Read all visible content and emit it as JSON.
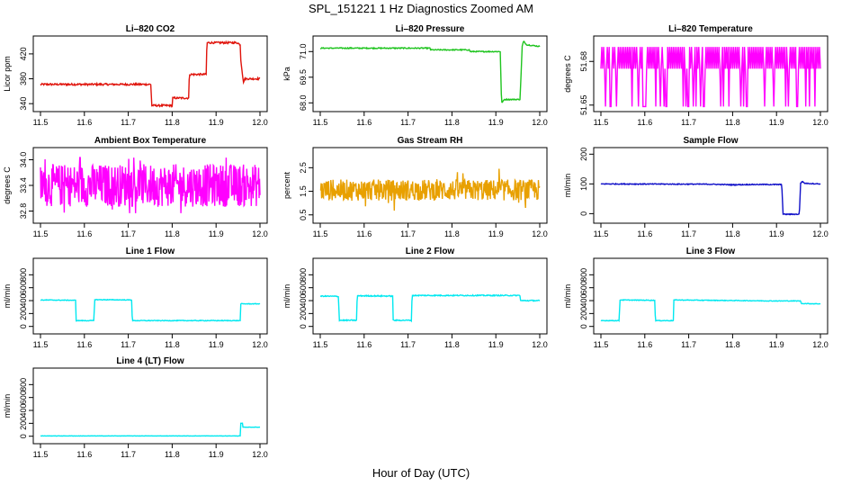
{
  "page": {
    "title": "SPL_151221  1 Hz Diagnostics Zoomed AM",
    "x_axis_label": "Hour of Day (UTC)"
  },
  "chart_data": [
    {
      "type": "line",
      "title": "Li–820 CO2",
      "ylabel": "Licor ppm",
      "color": "#e0140c",
      "xlim": [
        11.5,
        12.0
      ],
      "x_ticks": [
        "11.5",
        "11.6",
        "11.7",
        "11.8",
        "11.9",
        "12.0"
      ],
      "y_ticks": [
        {
          "value": 340,
          "label": "340"
        },
        {
          "value": 380,
          "label": "380"
        },
        {
          "value": 420,
          "label": "420"
        }
      ],
      "ylim": [
        333,
        443
      ],
      "noise": 1.5,
      "x": [
        11.5,
        11.752,
        11.753,
        11.8,
        11.801,
        11.838,
        11.839,
        11.878,
        11.879,
        11.948,
        11.955,
        11.956,
        11.963,
        11.964,
        12.0
      ],
      "values": [
        371,
        371,
        337,
        337,
        349,
        349,
        387,
        387,
        438,
        438,
        435,
        412,
        370,
        380,
        380
      ]
    },
    {
      "type": "line",
      "title": "Li–820 Pressure",
      "ylabel": "kPa",
      "color": "#1fc41f",
      "xlim": [
        11.5,
        12.0
      ],
      "x_ticks": [
        "11.5",
        "11.6",
        "11.7",
        "11.8",
        "11.9",
        "12.0"
      ],
      "y_ticks": [
        {
          "value": 68.0,
          "label": "68.0"
        },
        {
          "value": 69.5,
          "label": "69.5"
        },
        {
          "value": 71.0,
          "label": "71.0"
        }
      ],
      "ylim": [
        67.7,
        71.7
      ],
      "noise": 0.03,
      "x": [
        11.5,
        11.75,
        11.751,
        11.84,
        11.841,
        11.91,
        11.913,
        11.92,
        11.955,
        11.96,
        11.963,
        11.97,
        12.0
      ],
      "values": [
        71.2,
        71.2,
        71.1,
        71.1,
        71.0,
        71.0,
        68.0,
        68.2,
        68.2,
        71.3,
        71.6,
        71.4,
        71.3
      ]
    },
    {
      "type": "line",
      "title": "Li–820 Temperature",
      "ylabel": "degrees C",
      "color": "#ff00ff",
      "xlim": [
        11.5,
        12.0
      ],
      "x_ticks": [
        "11.5",
        "11.6",
        "11.7",
        "11.8",
        "11.9",
        "12.0"
      ],
      "y_ticks": [
        {
          "value": 51.65,
          "label": "51.65"
        },
        {
          "value": 51.68,
          "label": "51.68"
        }
      ],
      "ylim": [
        51.648,
        51.695
      ],
      "pattern": "quantized",
      "levels": [
        51.675,
        51.69
      ],
      "low_dip": 51.649,
      "dip_count": 40
    },
    {
      "type": "line",
      "title": "Ambient Box Temperature",
      "ylabel": "degrees C",
      "color": "#ff00ff",
      "xlim": [
        11.5,
        12.0
      ],
      "x_ticks": [
        "11.5",
        "11.6",
        "11.7",
        "11.8",
        "11.9",
        "12.0"
      ],
      "y_ticks": [
        {
          "value": 32.8,
          "label": "32.8"
        },
        {
          "value": 33.4,
          "label": "33.4"
        },
        {
          "value": 34.0,
          "label": "34.0"
        }
      ],
      "ylim": [
        32.6,
        34.2
      ],
      "pattern": "noise",
      "mean": 33.4,
      "spread": 0.5,
      "clip": [
        32.75,
        34.05
      ]
    },
    {
      "type": "line",
      "title": "Gas Stream RH",
      "ylabel": "percent",
      "color": "#e8a000",
      "xlim": [
        11.5,
        12.0
      ],
      "x_ticks": [
        "11.5",
        "11.6",
        "11.7",
        "11.8",
        "11.9",
        "12.0"
      ],
      "y_ticks": [
        {
          "value": 0.5,
          "label": "0.5"
        },
        {
          "value": 1.5,
          "label": "1.5"
        },
        {
          "value": 2.5,
          "label": "2.5"
        }
      ],
      "ylim": [
        0.3,
        3.2
      ],
      "pattern": "noise",
      "mean": 1.55,
      "spread": 0.45,
      "clip": [
        0.45,
        2.95
      ]
    },
    {
      "type": "line",
      "title": "Sample Flow",
      "ylabel": "ml/min",
      "color": "#1010c8",
      "xlim": [
        11.5,
        12.0
      ],
      "x_ticks": [
        "11.5",
        "11.6",
        "11.7",
        "11.8",
        "11.9",
        "12.0"
      ],
      "y_ticks": [
        {
          "value": 0,
          "label": "0"
        },
        {
          "value": 100,
          "label": "100"
        },
        {
          "value": 200,
          "label": "200"
        }
      ],
      "ylim": [
        -20,
        210
      ],
      "noise": 1.5,
      "x": [
        11.5,
        11.75,
        11.8,
        11.84,
        11.912,
        11.915,
        11.952,
        11.955,
        11.958,
        11.965,
        12.0
      ],
      "values": [
        100,
        99,
        97,
        98,
        98,
        -2,
        -2,
        102,
        108,
        102,
        100
      ]
    },
    {
      "type": "line",
      "title": "Line 1 Flow",
      "ylabel": "ml/min",
      "color": "#00e8f0",
      "xlim": [
        11.5,
        12.0
      ],
      "x_ticks": [
        "11.5",
        "11.6",
        "11.7",
        "11.8",
        "11.9",
        "12.0"
      ],
      "y_ticks": [
        {
          "value": 0,
          "label": "0"
        },
        {
          "value": 200,
          "label": "200"
        },
        {
          "value": 400,
          "label": "400"
        },
        {
          "value": 600,
          "label": "600"
        },
        {
          "value": 800,
          "label": "800"
        }
      ],
      "ylim": [
        -60,
        1000
      ],
      "noise": 5,
      "x": [
        11.5,
        11.58,
        11.581,
        11.622,
        11.623,
        11.708,
        11.709,
        11.955,
        11.956,
        12.0
      ],
      "values": [
        410,
        405,
        90,
        90,
        415,
        410,
        90,
        90,
        350,
        350
      ]
    },
    {
      "type": "line",
      "title": "Line 2 Flow",
      "ylabel": "ml/min",
      "color": "#00e8f0",
      "xlim": [
        11.5,
        12.0
      ],
      "x_ticks": [
        "11.5",
        "11.6",
        "11.7",
        "11.8",
        "11.9",
        "12.0"
      ],
      "y_ticks": [
        {
          "value": 0,
          "label": "0"
        },
        {
          "value": 200,
          "label": "200"
        },
        {
          "value": 400,
          "label": "400"
        },
        {
          "value": 600,
          "label": "600"
        },
        {
          "value": 800,
          "label": "800"
        }
      ],
      "ylim": [
        -60,
        1000
      ],
      "noise": 8,
      "x": [
        11.5,
        11.542,
        11.543,
        11.583,
        11.584,
        11.665,
        11.666,
        11.708,
        11.709,
        11.955,
        11.956,
        12.0
      ],
      "values": [
        470,
        465,
        95,
        95,
        475,
        470,
        95,
        95,
        480,
        480,
        400,
        400
      ]
    },
    {
      "type": "line",
      "title": "Line 3 Flow",
      "ylabel": "ml/min",
      "color": "#00e8f0",
      "xlim": [
        11.5,
        12.0
      ],
      "x_ticks": [
        "11.5",
        "11.6",
        "11.7",
        "11.8",
        "11.9",
        "12.0"
      ],
      "y_ticks": [
        {
          "value": 0,
          "label": "0"
        },
        {
          "value": 200,
          "label": "200"
        },
        {
          "value": 400,
          "label": "400"
        },
        {
          "value": 600,
          "label": "600"
        },
        {
          "value": 800,
          "label": "800"
        }
      ],
      "ylim": [
        -60,
        1000
      ],
      "noise": 5,
      "x": [
        11.5,
        11.542,
        11.543,
        11.623,
        11.624,
        11.665,
        11.666,
        11.9,
        11.955,
        11.956,
        12.0
      ],
      "values": [
        90,
        90,
        410,
        405,
        90,
        90,
        410,
        395,
        395,
        355,
        350
      ]
    },
    {
      "type": "line",
      "title": "Line 4 (LT) Flow",
      "ylabel": "ml/min",
      "color": "#00e8f0",
      "xlim": [
        11.5,
        12.0
      ],
      "x_ticks": [
        "11.5",
        "11.6",
        "11.7",
        "11.8",
        "11.9",
        "12.0"
      ],
      "y_ticks": [
        {
          "value": 0,
          "label": "0"
        },
        {
          "value": 200,
          "label": "200"
        },
        {
          "value": 400,
          "label": "400"
        },
        {
          "value": 600,
          "label": "600"
        },
        {
          "value": 800,
          "label": "800"
        }
      ],
      "ylim": [
        -60,
        1000
      ],
      "noise": 2,
      "x": [
        11.5,
        11.955,
        11.956,
        11.96,
        11.961,
        12.0
      ],
      "values": [
        5,
        5,
        200,
        200,
        140,
        140
      ]
    }
  ]
}
